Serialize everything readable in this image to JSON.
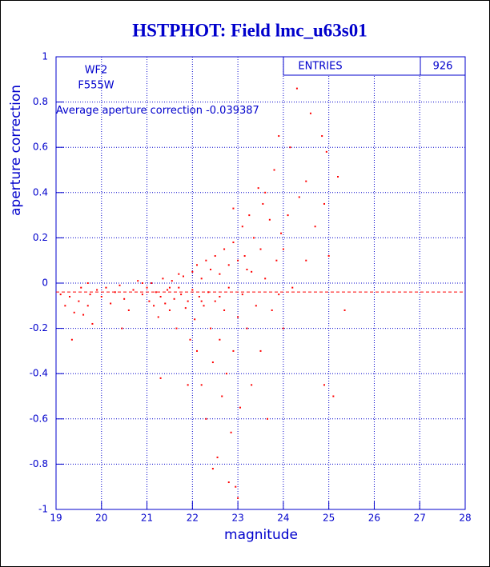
{
  "chart_data": {
    "type": "scatter",
    "title": "HSTPHOT: Field lmc_u63s01",
    "x_label": "magnitude",
    "y_label": "aperture correction",
    "annotations": [
      "WF2",
      "F555W"
    ],
    "average_label": "Average aperture correction",
    "average_value": -0.039387,
    "entries_label": "ENTRIES",
    "entries": 926,
    "color": "#ff0000",
    "grid": true,
    "xlim": [
      19,
      28
    ],
    "ylim": [
      -1,
      1
    ],
    "xticks": [
      19,
      20,
      21,
      22,
      23,
      24,
      25,
      26,
      27,
      28
    ],
    "yticks": [
      -1,
      -0.8,
      -0.6,
      -0.4,
      -0.2,
      0,
      0.2,
      0.4,
      0.6,
      0.8,
      1
    ],
    "series": [
      {
        "name": "aperture correction",
        "x": [
          19.1,
          19.2,
          19.3,
          19.35,
          19.4,
          19.5,
          19.55,
          19.6,
          19.7,
          19.75,
          19.8,
          19.9,
          20.0,
          20.1,
          20.2,
          20.3,
          20.4,
          20.5,
          20.6,
          20.7,
          20.8,
          20.9,
          21.0,
          21.05,
          21.1,
          21.15,
          21.2,
          21.25,
          21.3,
          21.35,
          21.4,
          21.45,
          21.5,
          21.55,
          21.6,
          21.65,
          21.7,
          21.75,
          21.8,
          21.85,
          21.9,
          21.95,
          22.0,
          22.0,
          22.05,
          22.1,
          22.1,
          22.15,
          22.2,
          22.2,
          22.25,
          22.3,
          22.3,
          22.35,
          22.4,
          22.4,
          22.45,
          22.5,
          22.5,
          22.55,
          22.6,
          22.6,
          22.65,
          22.7,
          22.7,
          22.75,
          22.8,
          22.8,
          22.85,
          22.9,
          22.9,
          22.95,
          23.0,
          23.0,
          23.05,
          23.1,
          23.1,
          23.15,
          23.2,
          23.25,
          23.3,
          23.3,
          23.35,
          23.4,
          23.45,
          23.5,
          23.5,
          23.55,
          23.6,
          23.65,
          23.7,
          23.75,
          23.8,
          23.85,
          23.9,
          23.95,
          24.0,
          24.1,
          24.15,
          24.2,
          24.3,
          24.35,
          24.5,
          24.6,
          24.7,
          24.85,
          24.9,
          24.95,
          25.0,
          25.1,
          25.2,
          25.35,
          23.0,
          22.8,
          22.45,
          21.9,
          21.3,
          20.45,
          22.9,
          23.6,
          24.0,
          21.7,
          22.2,
          21.5,
          20.9,
          22.6,
          23.2,
          19.7,
          24.5,
          23.9,
          24.9
        ],
        "values": [
          -0.05,
          -0.1,
          -0.06,
          -0.25,
          -0.13,
          -0.08,
          -0.02,
          -0.14,
          0.0,
          -0.05,
          -0.18,
          -0.03,
          -0.06,
          -0.02,
          -0.09,
          -0.04,
          -0.01,
          -0.07,
          -0.12,
          -0.03,
          0.01,
          -0.05,
          -0.02,
          -0.08,
          0.0,
          -0.1,
          -0.04,
          -0.15,
          -0.06,
          0.02,
          -0.09,
          -0.03,
          -0.12,
          0.01,
          -0.07,
          -0.2,
          -0.02,
          -0.05,
          0.03,
          -0.11,
          -0.08,
          -0.25,
          0.05,
          -0.03,
          -0.16,
          0.08,
          -0.3,
          -0.06,
          0.02,
          -0.45,
          -0.1,
          0.1,
          -0.6,
          -0.04,
          0.06,
          -0.2,
          -0.35,
          0.12,
          -0.08,
          -0.77,
          0.04,
          -0.25,
          -0.5,
          0.15,
          -0.12,
          -0.4,
          0.08,
          -0.02,
          -0.66,
          0.18,
          -0.3,
          -0.9,
          0.1,
          -0.15,
          -0.55,
          0.25,
          -0.05,
          0.12,
          -0.2,
          0.3,
          0.05,
          -0.45,
          0.2,
          -0.1,
          0.42,
          0.15,
          -0.3,
          0.35,
          0.02,
          -0.6,
          0.28,
          -0.12,
          0.5,
          0.1,
          -0.05,
          0.22,
          -0.2,
          0.3,
          0.6,
          -0.02,
          0.86,
          0.38,
          0.1,
          0.75,
          0.25,
          0.65,
          -0.45,
          0.58,
          0.12,
          -0.5,
          0.47,
          -0.12,
          -0.95,
          -0.88,
          -0.82,
          -0.45,
          -0.42,
          -0.2,
          0.33,
          0.4,
          0.15,
          0.04,
          -0.08,
          -0.02,
          0.0,
          -0.06,
          0.06,
          -0.1,
          0.45,
          0.65,
          0.35
        ]
      }
    ]
  }
}
